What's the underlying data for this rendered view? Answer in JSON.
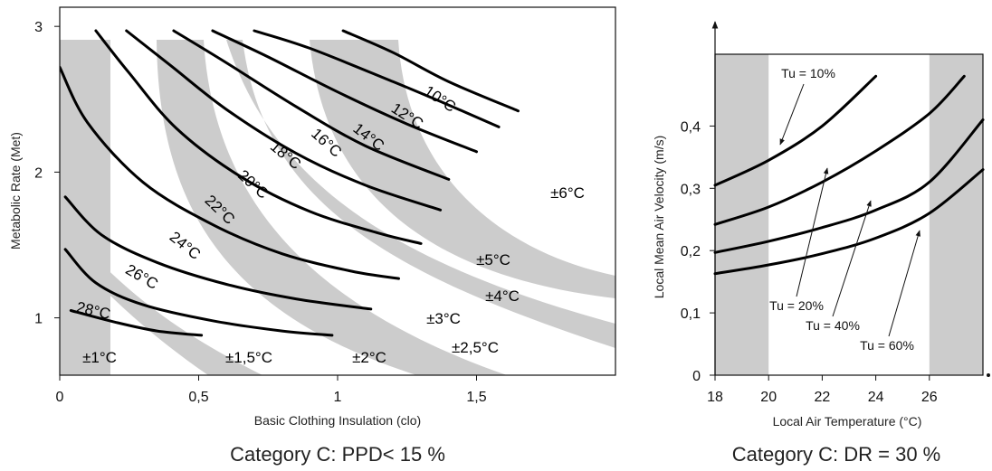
{
  "chart_data": [
    {
      "type": "line",
      "caption": "Category C: PPD< 15 %",
      "xlabel": "Basic Clothing Insulation (clo)",
      "ylabel": "Metabolic Rate (Met)",
      "x_ticks": [
        {
          "v": 0,
          "label": "0"
        },
        {
          "v": 0.5,
          "label": "0,5"
        },
        {
          "v": 1,
          "label": "1"
        },
        {
          "v": 1.5,
          "label": "1,5"
        }
      ],
      "y_ticks": [
        {
          "v": 1,
          "label": "1"
        },
        {
          "v": 2,
          "label": "2"
        },
        {
          "v": 3,
          "label": "3"
        }
      ],
      "xlim": [
        0,
        2.0
      ],
      "ylim": [
        0.65,
        3.15
      ],
      "series": [
        {
          "label": "10°C",
          "points": [
            [
              1.02,
              2.97
            ],
            [
              1.2,
              2.82
            ],
            [
              1.4,
              2.62
            ],
            [
              1.65,
              2.42
            ]
          ]
        },
        {
          "label": "12°C",
          "points": [
            [
              0.7,
              2.97
            ],
            [
              0.9,
              2.85
            ],
            [
              1.2,
              2.62
            ],
            [
              1.4,
              2.46
            ],
            [
              1.58,
              2.31
            ]
          ]
        },
        {
          "label": "14°C",
          "points": [
            [
              0.55,
              2.97
            ],
            [
              0.75,
              2.79
            ],
            [
              1.0,
              2.55
            ],
            [
              1.25,
              2.33
            ],
            [
              1.5,
              2.14
            ]
          ]
        },
        {
          "label": "16°C",
          "points": [
            [
              0.41,
              2.97
            ],
            [
              0.6,
              2.75
            ],
            [
              0.85,
              2.45
            ],
            [
              1.1,
              2.18
            ],
            [
              1.4,
              1.95
            ]
          ]
        },
        {
          "label": "18°C",
          "points": [
            [
              0.24,
              2.97
            ],
            [
              0.4,
              2.73
            ],
            [
              0.6,
              2.43
            ],
            [
              0.85,
              2.13
            ],
            [
              1.1,
              1.91
            ],
            [
              1.37,
              1.74
            ]
          ]
        },
        {
          "label": "20°C",
          "points": [
            [
              0.13,
              2.97
            ],
            [
              0.25,
              2.68
            ],
            [
              0.42,
              2.3
            ],
            [
              0.65,
              1.97
            ],
            [
              0.9,
              1.73
            ],
            [
              1.15,
              1.58
            ],
            [
              1.3,
              1.51
            ]
          ]
        },
        {
          "label": "22°C",
          "points": [
            [
              0.0,
              2.72
            ],
            [
              0.1,
              2.34
            ],
            [
              0.3,
              1.93
            ],
            [
              0.55,
              1.64
            ],
            [
              0.8,
              1.44
            ],
            [
              1.05,
              1.32
            ],
            [
              1.22,
              1.27
            ]
          ]
        },
        {
          "label": "24°C",
          "points": [
            [
              0.02,
              1.83
            ],
            [
              0.15,
              1.57
            ],
            [
              0.35,
              1.38
            ],
            [
              0.6,
              1.23
            ],
            [
              0.85,
              1.13
            ],
            [
              1.12,
              1.06
            ]
          ]
        },
        {
          "label": "26°C",
          "points": [
            [
              0.02,
              1.47
            ],
            [
              0.13,
              1.24
            ],
            [
              0.3,
              1.09
            ],
            [
              0.55,
              0.98
            ],
            [
              0.8,
              0.91
            ],
            [
              0.98,
              0.88
            ]
          ]
        },
        {
          "label": "28°C",
          "points": [
            [
              0.04,
              1.05
            ],
            [
              0.2,
              0.97
            ],
            [
              0.35,
              0.91
            ],
            [
              0.51,
              0.88
            ]
          ]
        }
      ],
      "zone_labels": [
        "±1°C",
        "±1,5°C",
        "±2°C",
        "±2,5°C",
        "±3°C",
        "±4°C",
        "±5°C",
        "±6°C"
      ]
    },
    {
      "type": "line",
      "caption": "Category C: DR = 30 %",
      "xlabel": "Local Air Temperature (°C)",
      "ylabel": "Local Mean Air Velocity (m/s)",
      "x_ticks": [
        {
          "v": 18,
          "label": "18"
        },
        {
          "v": 20,
          "label": "20"
        },
        {
          "v": 22,
          "label": "22"
        },
        {
          "v": 24,
          "label": "24"
        },
        {
          "v": 26,
          "label": "26"
        }
      ],
      "y_ticks": [
        {
          "v": 0,
          "label": "0"
        },
        {
          "v": 0.1,
          "label": "0,1"
        },
        {
          "v": 0.2,
          "label": "0,2"
        },
        {
          "v": 0.3,
          "label": "0,3"
        },
        {
          "v": 0.4,
          "label": "0,4"
        }
      ],
      "xlim": [
        18,
        28
      ],
      "ylim": [
        0,
        0.5
      ],
      "shaded_x_ranges": [
        [
          18,
          20
        ],
        [
          26,
          28
        ]
      ],
      "series": [
        {
          "name": "Tu = 10%",
          "points": [
            [
              18,
              0.305
            ],
            [
              20,
              0.345
            ],
            [
              22,
              0.4
            ],
            [
              24,
              0.48
            ]
          ]
        },
        {
          "name": "Tu = 20%",
          "points": [
            [
              18,
              0.242
            ],
            [
              20,
              0.27
            ],
            [
              22,
              0.31
            ],
            [
              24,
              0.36
            ],
            [
              26,
              0.42
            ],
            [
              27.3,
              0.48
            ]
          ]
        },
        {
          "name": "Tu = 40%",
          "points": [
            [
              18,
              0.197
            ],
            [
              20,
              0.215
            ],
            [
              22,
              0.237
            ],
            [
              24,
              0.265
            ],
            [
              26,
              0.31
            ],
            [
              28,
              0.41
            ]
          ]
        },
        {
          "name": "Tu = 60%",
          "points": [
            [
              18,
              0.163
            ],
            [
              20,
              0.177
            ],
            [
              22,
              0.195
            ],
            [
              24,
              0.22
            ],
            [
              26,
              0.26
            ],
            [
              28,
              0.33
            ]
          ]
        }
      ],
      "tu_labels": [
        "Tu = 10%",
        "Tu = 20%",
        "Tu = 40%",
        "Tu = 60%"
      ]
    }
  ]
}
